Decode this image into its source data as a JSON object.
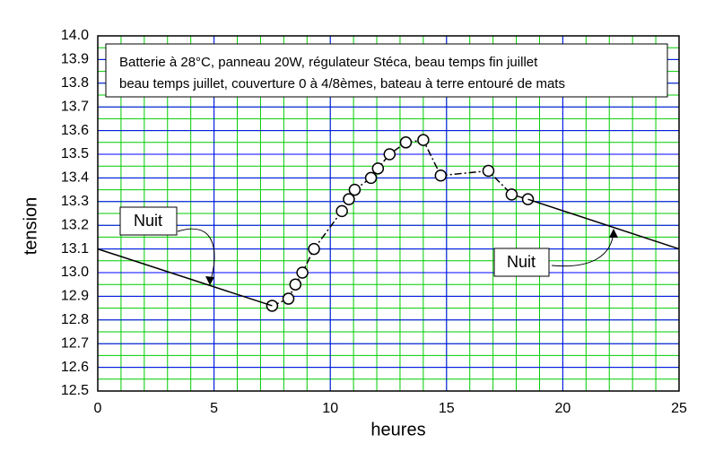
{
  "chart_data": {
    "type": "line",
    "xlabel": "heures",
    "ylabel": "tension",
    "notes": [
      "Batterie à 28°C, panneau 20W, régulateur Stéca, beau temps fin juillet",
      "beau temps juillet, couverture 0 à 4/8èmes, bateau à terre entouré de mats"
    ],
    "annotations": [
      "Nuit",
      "Nuit"
    ],
    "xlim": [
      0,
      25
    ],
    "xticks": [
      0,
      5,
      10,
      15,
      20,
      25
    ],
    "ylim": [
      12.5,
      14.0
    ],
    "yticks": [
      12.5,
      12.6,
      12.7,
      12.8,
      12.9,
      {
        "value": 13,
        "label": "13.0"
      },
      13.1,
      13.2,
      13.3,
      13.4,
      13.5,
      13.6,
      13.7,
      13.8,
      13.9,
      {
        "value": 14,
        "label": "14.0"
      }
    ],
    "grid": true,
    "grid_color": "#0000ff",
    "minor_grid_color": "#00cc00",
    "minor_xstep": 1,
    "minor_ystep": 0.05,
    "series": [
      {
        "color": "#000000",
        "line_style": "dashdot",
        "marker": "circle",
        "x": [
          7.5,
          8.2,
          8.5,
          8.8,
          9.3,
          10.5,
          10.8,
          11.05,
          11.75,
          12.05,
          12.55,
          13.25,
          14.0,
          14.75,
          16.8,
          17.8,
          18.5
        ],
        "values": [
          12.86,
          12.89,
          12.95,
          13.0,
          13.1,
          13.26,
          13.31,
          13.35,
          13.4,
          13.44,
          13.5,
          13.55,
          13.56,
          13.41,
          13.43,
          13.33,
          13.31
        ]
      },
      {
        "color": "#000000",
        "line_style": "solid",
        "marker": "none",
        "x": [
          0,
          7.5
        ],
        "values": [
          13.1,
          12.86
        ]
      },
      {
        "color": "#000000",
        "line_style": "solid",
        "marker": "none",
        "x": [
          18.5,
          25
        ],
        "values": [
          13.31,
          13.1
        ]
      }
    ]
  }
}
